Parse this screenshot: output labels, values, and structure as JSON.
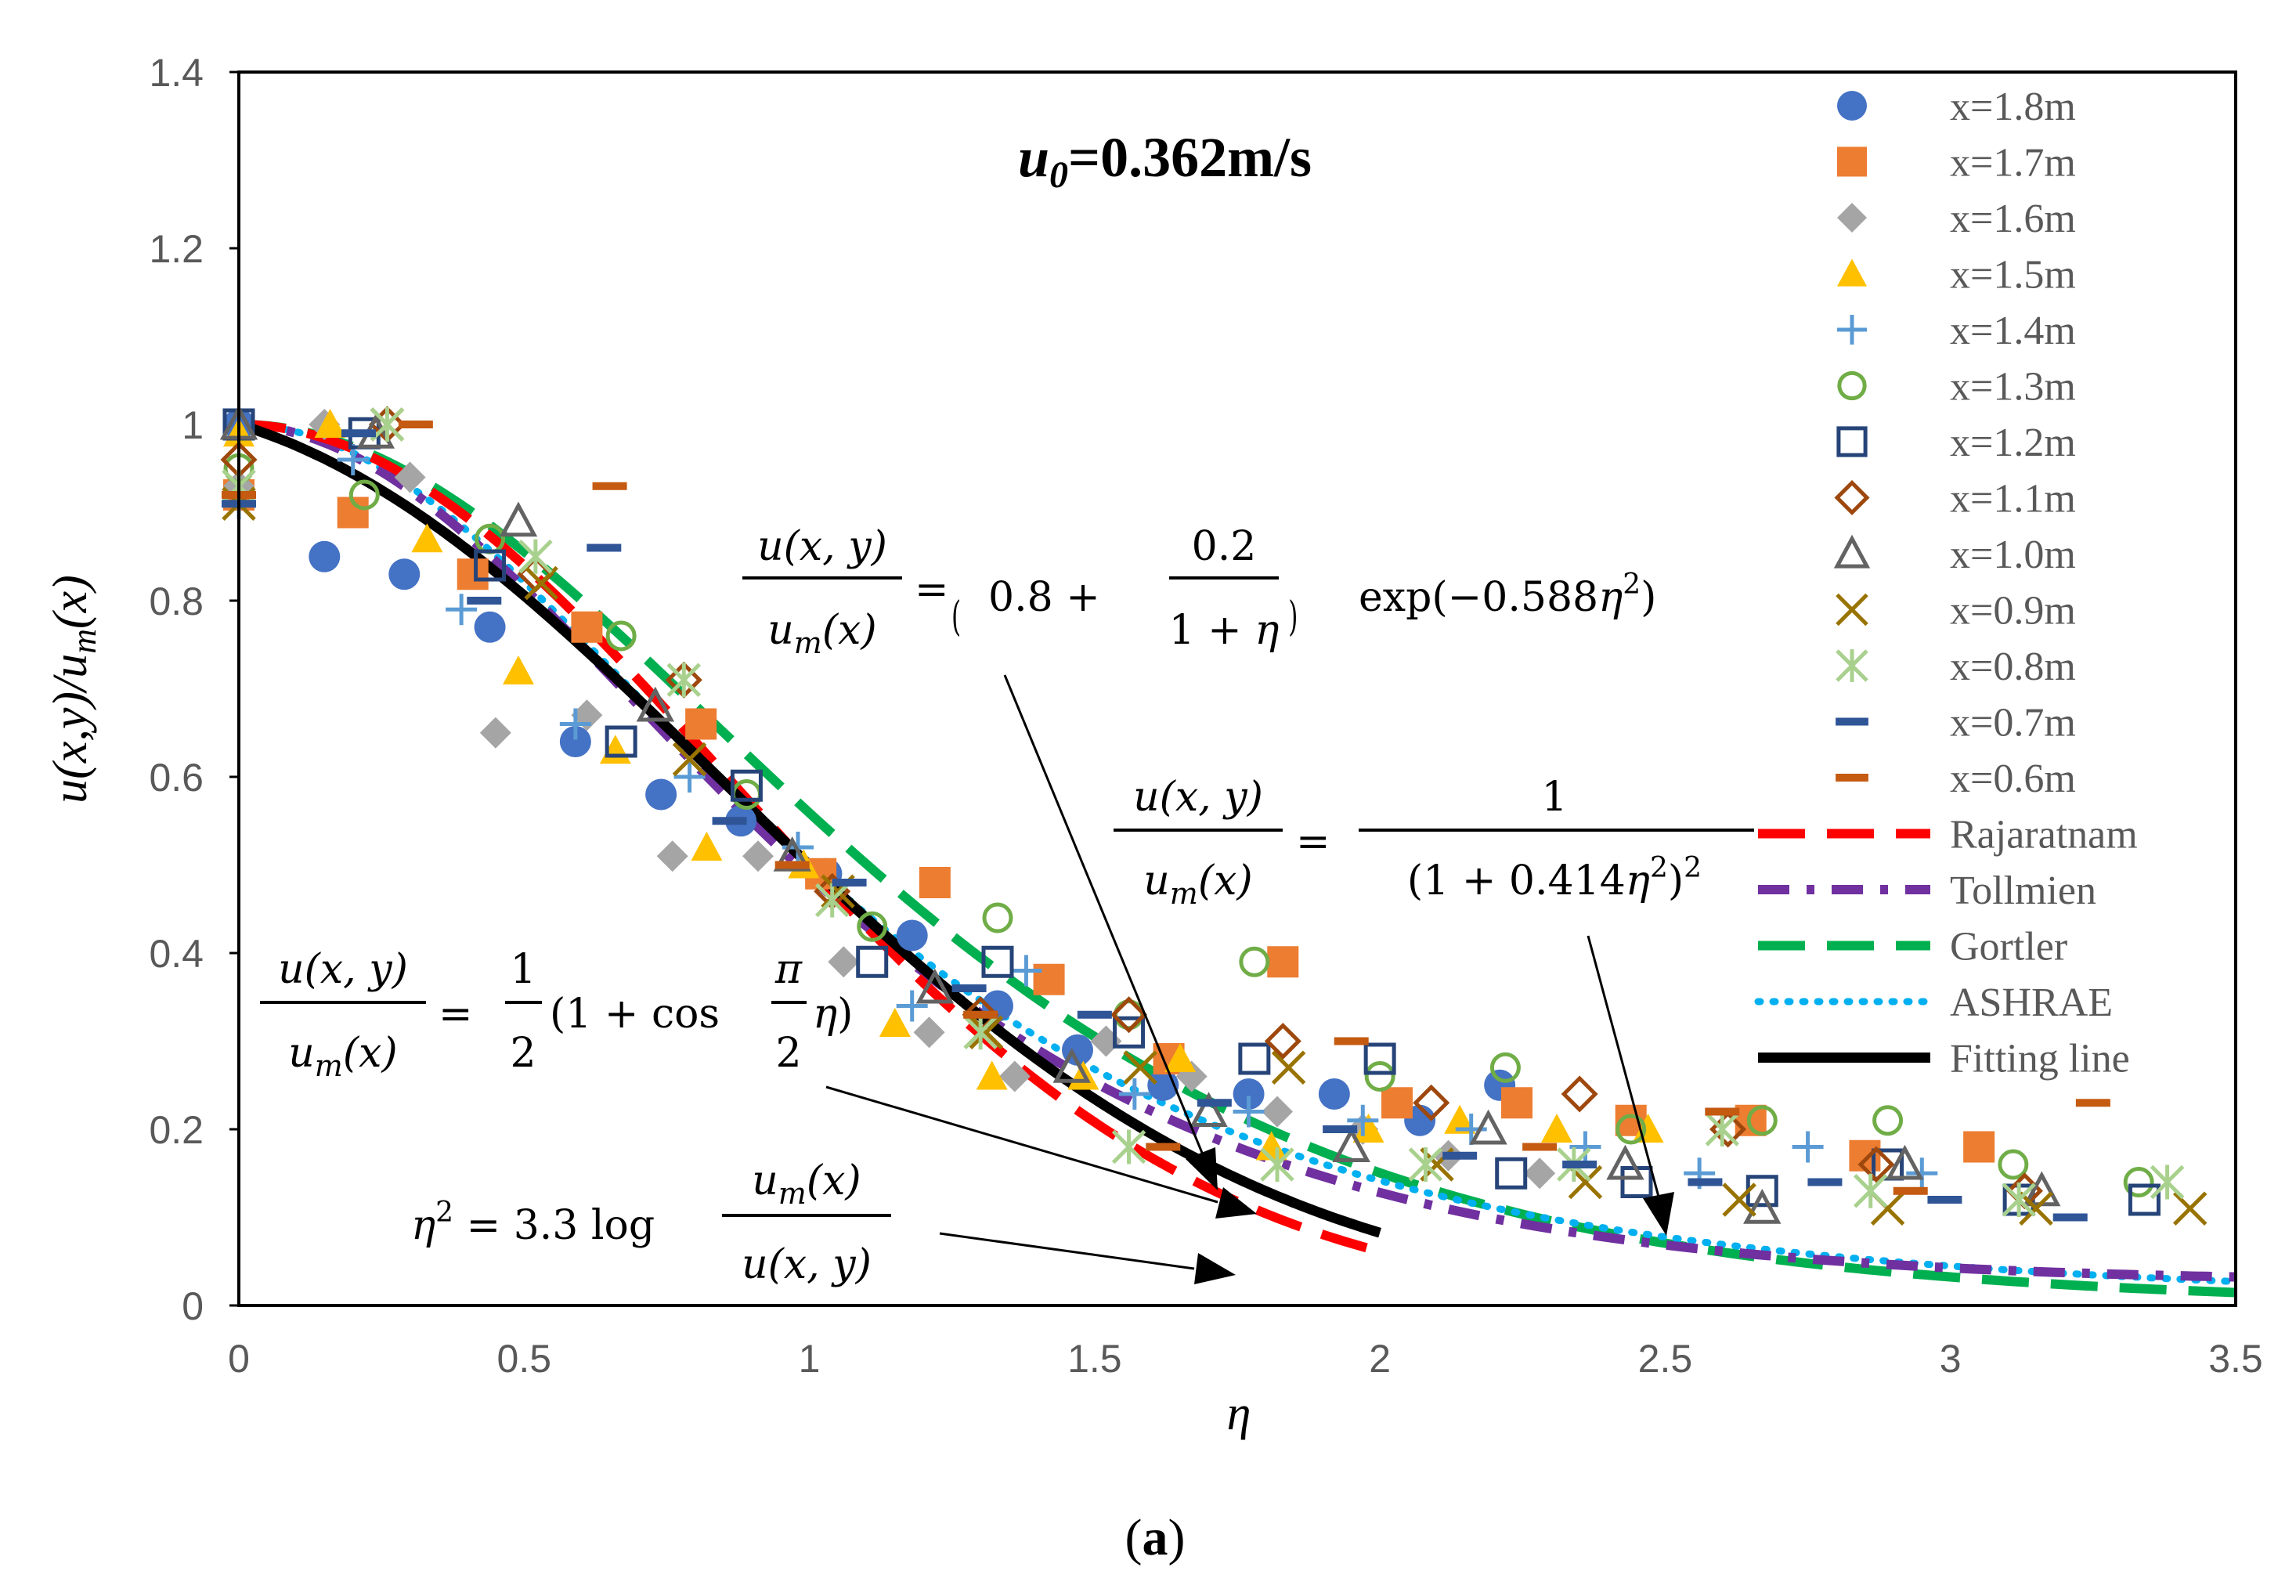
{
  "chart_data": {
    "type": "scatter",
    "title": "u₀=0.362m/s",
    "title_main": "u",
    "title_sub": "0",
    "title_rest": "=0.362m/s",
    "xlabel": "η",
    "ylabel": "u(x,y)/u_m(x)",
    "caption": "(a)",
    "xlim": [
      0,
      3.5
    ],
    "ylim": [
      0,
      1.4
    ],
    "xticks": [
      "0",
      "0.5",
      "1",
      "1.5",
      "2",
      "2.5",
      "3",
      "3.5"
    ],
    "yticks": [
      "0",
      "0.2",
      "0.4",
      "0.6",
      "0.8",
      "1",
      "1.2",
      "1.4"
    ],
    "series": [
      {
        "name": "x=1.8m",
        "marker": "filled-circle",
        "color": "#4472C4",
        "points": [
          [
            0,
            1.0
          ],
          [
            0.15,
            0.85
          ],
          [
            0.29,
            0.83
          ],
          [
            0.44,
            0.77
          ],
          [
            0.59,
            0.64
          ],
          [
            0.74,
            0.58
          ],
          [
            0.88,
            0.55
          ],
          [
            1.03,
            0.49
          ],
          [
            1.18,
            0.42
          ],
          [
            1.33,
            0.34
          ],
          [
            1.47,
            0.29
          ],
          [
            1.62,
            0.25
          ],
          [
            1.77,
            0.24
          ],
          [
            1.92,
            0.24
          ],
          [
            2.07,
            0.21
          ],
          [
            2.21,
            0.25
          ]
        ]
      },
      {
        "name": "x=1.7m",
        "marker": "filled-square",
        "color": "#ED7D31",
        "points": [
          [
            0,
            0.92
          ],
          [
            0.2,
            0.9
          ],
          [
            0.41,
            0.83
          ],
          [
            0.61,
            0.77
          ],
          [
            0.81,
            0.66
          ],
          [
            1.02,
            0.49
          ],
          [
            1.22,
            0.48
          ],
          [
            1.42,
            0.37
          ],
          [
            1.63,
            0.28
          ],
          [
            1.83,
            0.39
          ],
          [
            2.03,
            0.23
          ],
          [
            2.24,
            0.23
          ],
          [
            2.44,
            0.21
          ],
          [
            2.65,
            0.21
          ],
          [
            2.85,
            0.17
          ],
          [
            3.05,
            0.18
          ]
        ]
      },
      {
        "name": "x=1.6m",
        "marker": "filled-diamond",
        "color": "#A5A5A5",
        "points": [
          [
            0,
            0.93
          ],
          [
            0.15,
            1.0
          ],
          [
            0.3,
            0.94
          ],
          [
            0.45,
            0.65
          ],
          [
            0.61,
            0.67
          ],
          [
            0.76,
            0.51
          ],
          [
            0.91,
            0.51
          ],
          [
            1.06,
            0.39
          ],
          [
            1.21,
            0.31
          ],
          [
            1.36,
            0.26
          ],
          [
            1.52,
            0.3
          ],
          [
            1.67,
            0.26
          ],
          [
            1.82,
            0.22
          ],
          [
            1.97,
            0.2
          ],
          [
            2.12,
            0.17
          ],
          [
            2.28,
            0.15
          ]
        ]
      },
      {
        "name": "x=1.5m",
        "marker": "filled-triangle",
        "color": "#FFC000",
        "points": [
          [
            0,
            0.99
          ],
          [
            0.16,
            1.0
          ],
          [
            0.33,
            0.87
          ],
          [
            0.49,
            0.72
          ],
          [
            0.66,
            0.63
          ],
          [
            0.82,
            0.52
          ],
          [
            0.99,
            0.5
          ],
          [
            1.15,
            0.32
          ],
          [
            1.32,
            0.26
          ],
          [
            1.48,
            0.26
          ],
          [
            1.65,
            0.28
          ],
          [
            1.81,
            0.18
          ],
          [
            1.98,
            0.2
          ],
          [
            2.14,
            0.21
          ],
          [
            2.31,
            0.2
          ],
          [
            2.47,
            0.2
          ]
        ]
      },
      {
        "name": "x=1.4m",
        "marker": "plus",
        "color": "#5B9BD5",
        "points": [
          [
            0,
            0.91
          ],
          [
            0.2,
            0.96
          ],
          [
            0.39,
            0.79
          ],
          [
            0.59,
            0.66
          ],
          [
            0.79,
            0.6
          ],
          [
            0.98,
            0.52
          ],
          [
            1.18,
            0.34
          ],
          [
            1.38,
            0.38
          ],
          [
            1.57,
            0.24
          ],
          [
            1.77,
            0.22
          ],
          [
            1.97,
            0.21
          ],
          [
            2.16,
            0.2
          ],
          [
            2.36,
            0.18
          ],
          [
            2.56,
            0.15
          ],
          [
            2.75,
            0.18
          ],
          [
            2.95,
            0.15
          ]
        ]
      },
      {
        "name": "x=1.3m",
        "marker": "open-circle",
        "color": "#70AD47",
        "points": [
          [
            0,
            0.95
          ],
          [
            0.22,
            0.92
          ],
          [
            0.44,
            0.87
          ],
          [
            0.67,
            0.76
          ],
          [
            0.89,
            0.58
          ],
          [
            1.11,
            0.43
          ],
          [
            1.33,
            0.44
          ],
          [
            1.56,
            0.33
          ],
          [
            1.78,
            0.39
          ],
          [
            2.0,
            0.26
          ],
          [
            2.22,
            0.27
          ],
          [
            2.44,
            0.2
          ],
          [
            2.67,
            0.21
          ],
          [
            2.89,
            0.21
          ],
          [
            3.11,
            0.16
          ],
          [
            3.33,
            0.14
          ]
        ]
      },
      {
        "name": "x=1.2m",
        "marker": "open-square",
        "color": "#264478",
        "points": [
          [
            0,
            1.0
          ],
          [
            0.22,
            0.99
          ],
          [
            0.44,
            0.84
          ],
          [
            0.67,
            0.64
          ],
          [
            0.89,
            0.59
          ],
          [
            1.11,
            0.39
          ],
          [
            1.33,
            0.39
          ],
          [
            1.56,
            0.31
          ],
          [
            1.78,
            0.28
          ],
          [
            2.0,
            0.28
          ],
          [
            2.23,
            0.15
          ],
          [
            2.45,
            0.14
          ],
          [
            2.67,
            0.13
          ],
          [
            2.89,
            0.16
          ],
          [
            3.12,
            0.12
          ],
          [
            3.34,
            0.12
          ]
        ]
      },
      {
        "name": "x=1.1m",
        "marker": "open-diamond",
        "color": "#9E480E",
        "points": [
          [
            0,
            0.96
          ],
          [
            0.26,
            1.0
          ],
          [
            0.52,
            0.83
          ],
          [
            0.78,
            0.71
          ],
          [
            1.04,
            0.47
          ],
          [
            1.3,
            0.33
          ],
          [
            1.56,
            0.33
          ],
          [
            1.83,
            0.3
          ],
          [
            2.09,
            0.23
          ],
          [
            2.35,
            0.24
          ],
          [
            2.61,
            0.2
          ],
          [
            2.87,
            0.16
          ],
          [
            3.13,
            0.13
          ]
        ]
      },
      {
        "name": "x=1.0m",
        "marker": "open-triangle",
        "color": "#636363",
        "points": [
          [
            0,
            1.0
          ],
          [
            0.24,
            0.99
          ],
          [
            0.49,
            0.89
          ],
          [
            0.73,
            0.68
          ],
          [
            0.97,
            0.51
          ],
          [
            1.22,
            0.36
          ],
          [
            1.46,
            0.27
          ],
          [
            1.7,
            0.22
          ],
          [
            1.95,
            0.18
          ],
          [
            2.19,
            0.2
          ],
          [
            2.43,
            0.16
          ],
          [
            2.67,
            0.11
          ],
          [
            2.92,
            0.16
          ],
          [
            3.16,
            0.13
          ]
        ]
      },
      {
        "name": "x=0.9m",
        "marker": "x-cross",
        "color": "#997300",
        "points": [
          [
            0,
            0.91
          ],
          [
            0.26,
            1.0
          ],
          [
            0.53,
            0.82
          ],
          [
            0.79,
            0.62
          ],
          [
            1.05,
            0.47
          ],
          [
            1.31,
            0.31
          ],
          [
            1.58,
            0.27
          ],
          [
            1.84,
            0.27
          ],
          [
            2.1,
            0.16
          ],
          [
            2.36,
            0.14
          ],
          [
            2.63,
            0.12
          ],
          [
            2.89,
            0.11
          ],
          [
            3.15,
            0.11
          ],
          [
            3.42,
            0.11
          ]
        ]
      },
      {
        "name": "x=0.8m",
        "marker": "asterisk",
        "color": "#A9D18E",
        "points": [
          [
            0,
            0.93
          ],
          [
            0.26,
            1.0
          ],
          [
            0.52,
            0.85
          ],
          [
            0.78,
            0.71
          ],
          [
            1.04,
            0.46
          ],
          [
            1.3,
            0.31
          ],
          [
            1.56,
            0.18
          ],
          [
            1.82,
            0.16
          ],
          [
            2.08,
            0.16
          ],
          [
            2.34,
            0.16
          ],
          [
            2.6,
            0.2
          ],
          [
            2.86,
            0.13
          ],
          [
            3.12,
            0.12
          ],
          [
            3.38,
            0.14
          ]
        ]
      },
      {
        "name": "x=0.7m",
        "marker": "dash",
        "color": "#2F5597",
        "points": [
          [
            0,
            0.91
          ],
          [
            0.21,
            0.99
          ],
          [
            0.43,
            0.8
          ],
          [
            0.64,
            0.86
          ],
          [
            0.86,
            0.55
          ],
          [
            1.07,
            0.48
          ],
          [
            1.28,
            0.36
          ],
          [
            1.5,
            0.33
          ],
          [
            1.71,
            0.23
          ],
          [
            1.93,
            0.2
          ],
          [
            2.14,
            0.17
          ],
          [
            2.35,
            0.16
          ],
          [
            2.57,
            0.14
          ],
          [
            2.78,
            0.14
          ],
          [
            2.99,
            0.12
          ],
          [
            3.21,
            0.1
          ]
        ]
      },
      {
        "name": "x=0.6m",
        "marker": "dash",
        "color": "#C55A11",
        "points": [
          [
            0,
            0.92
          ],
          [
            0.31,
            1.0
          ],
          [
            0.65,
            0.93
          ],
          [
            0.97,
            0.5
          ],
          [
            1.3,
            0.33
          ],
          [
            1.62,
            0.18
          ],
          [
            1.95,
            0.3
          ],
          [
            2.28,
            0.18
          ],
          [
            2.6,
            0.22
          ],
          [
            2.93,
            0.13
          ],
          [
            3.25,
            0.23
          ]
        ]
      },
      {
        "name": "Rajaratnam",
        "line": "long-dash",
        "color": "#FF0000",
        "equation": "η² = 3.3 log(u_m(x)/u(x,y))",
        "x_max": 2.0
      },
      {
        "name": "Tollmien",
        "line": "dash-dot",
        "color": "#7030A0",
        "equation": "u(x,y)/u_m(x) = ½(1 + cos(π/2 η))",
        "x_max": 3.5
      },
      {
        "name": "Gortler",
        "line": "long-dash",
        "color": "#00B050",
        "equation": "u(x,y)/u_m(x) = 1/(1 + 0.414η²)²",
        "x_max": 3.5
      },
      {
        "name": "ASHRAE",
        "line": "dotted",
        "color": "#00B0F0",
        "equation": "u(x,y)/u_m(x) = ½(1 + cos(π/2 η))",
        "x_max": 3.5
      },
      {
        "name": "Fitting line",
        "line": "solid",
        "color": "#000000",
        "equation": "u(x,y)/u_m(x) = (0.8 + 0.2/(1+η)) exp(−0.588η²)",
        "x_max": 2.0
      }
    ],
    "legend": [
      "x=1.8m",
      "x=1.7m",
      "x=1.6m",
      "x=1.5m",
      "x=1.4m",
      "x=1.3m",
      "x=1.2m",
      "x=1.1m",
      "x=1.0m",
      "x=0.9m",
      "x=0.8m",
      "x=0.7m",
      "x=0.6m",
      "Rajaratnam",
      "Tollmien",
      "Gortler",
      "ASHRAE",
      "Fitting line"
    ],
    "legend_position": "right"
  }
}
